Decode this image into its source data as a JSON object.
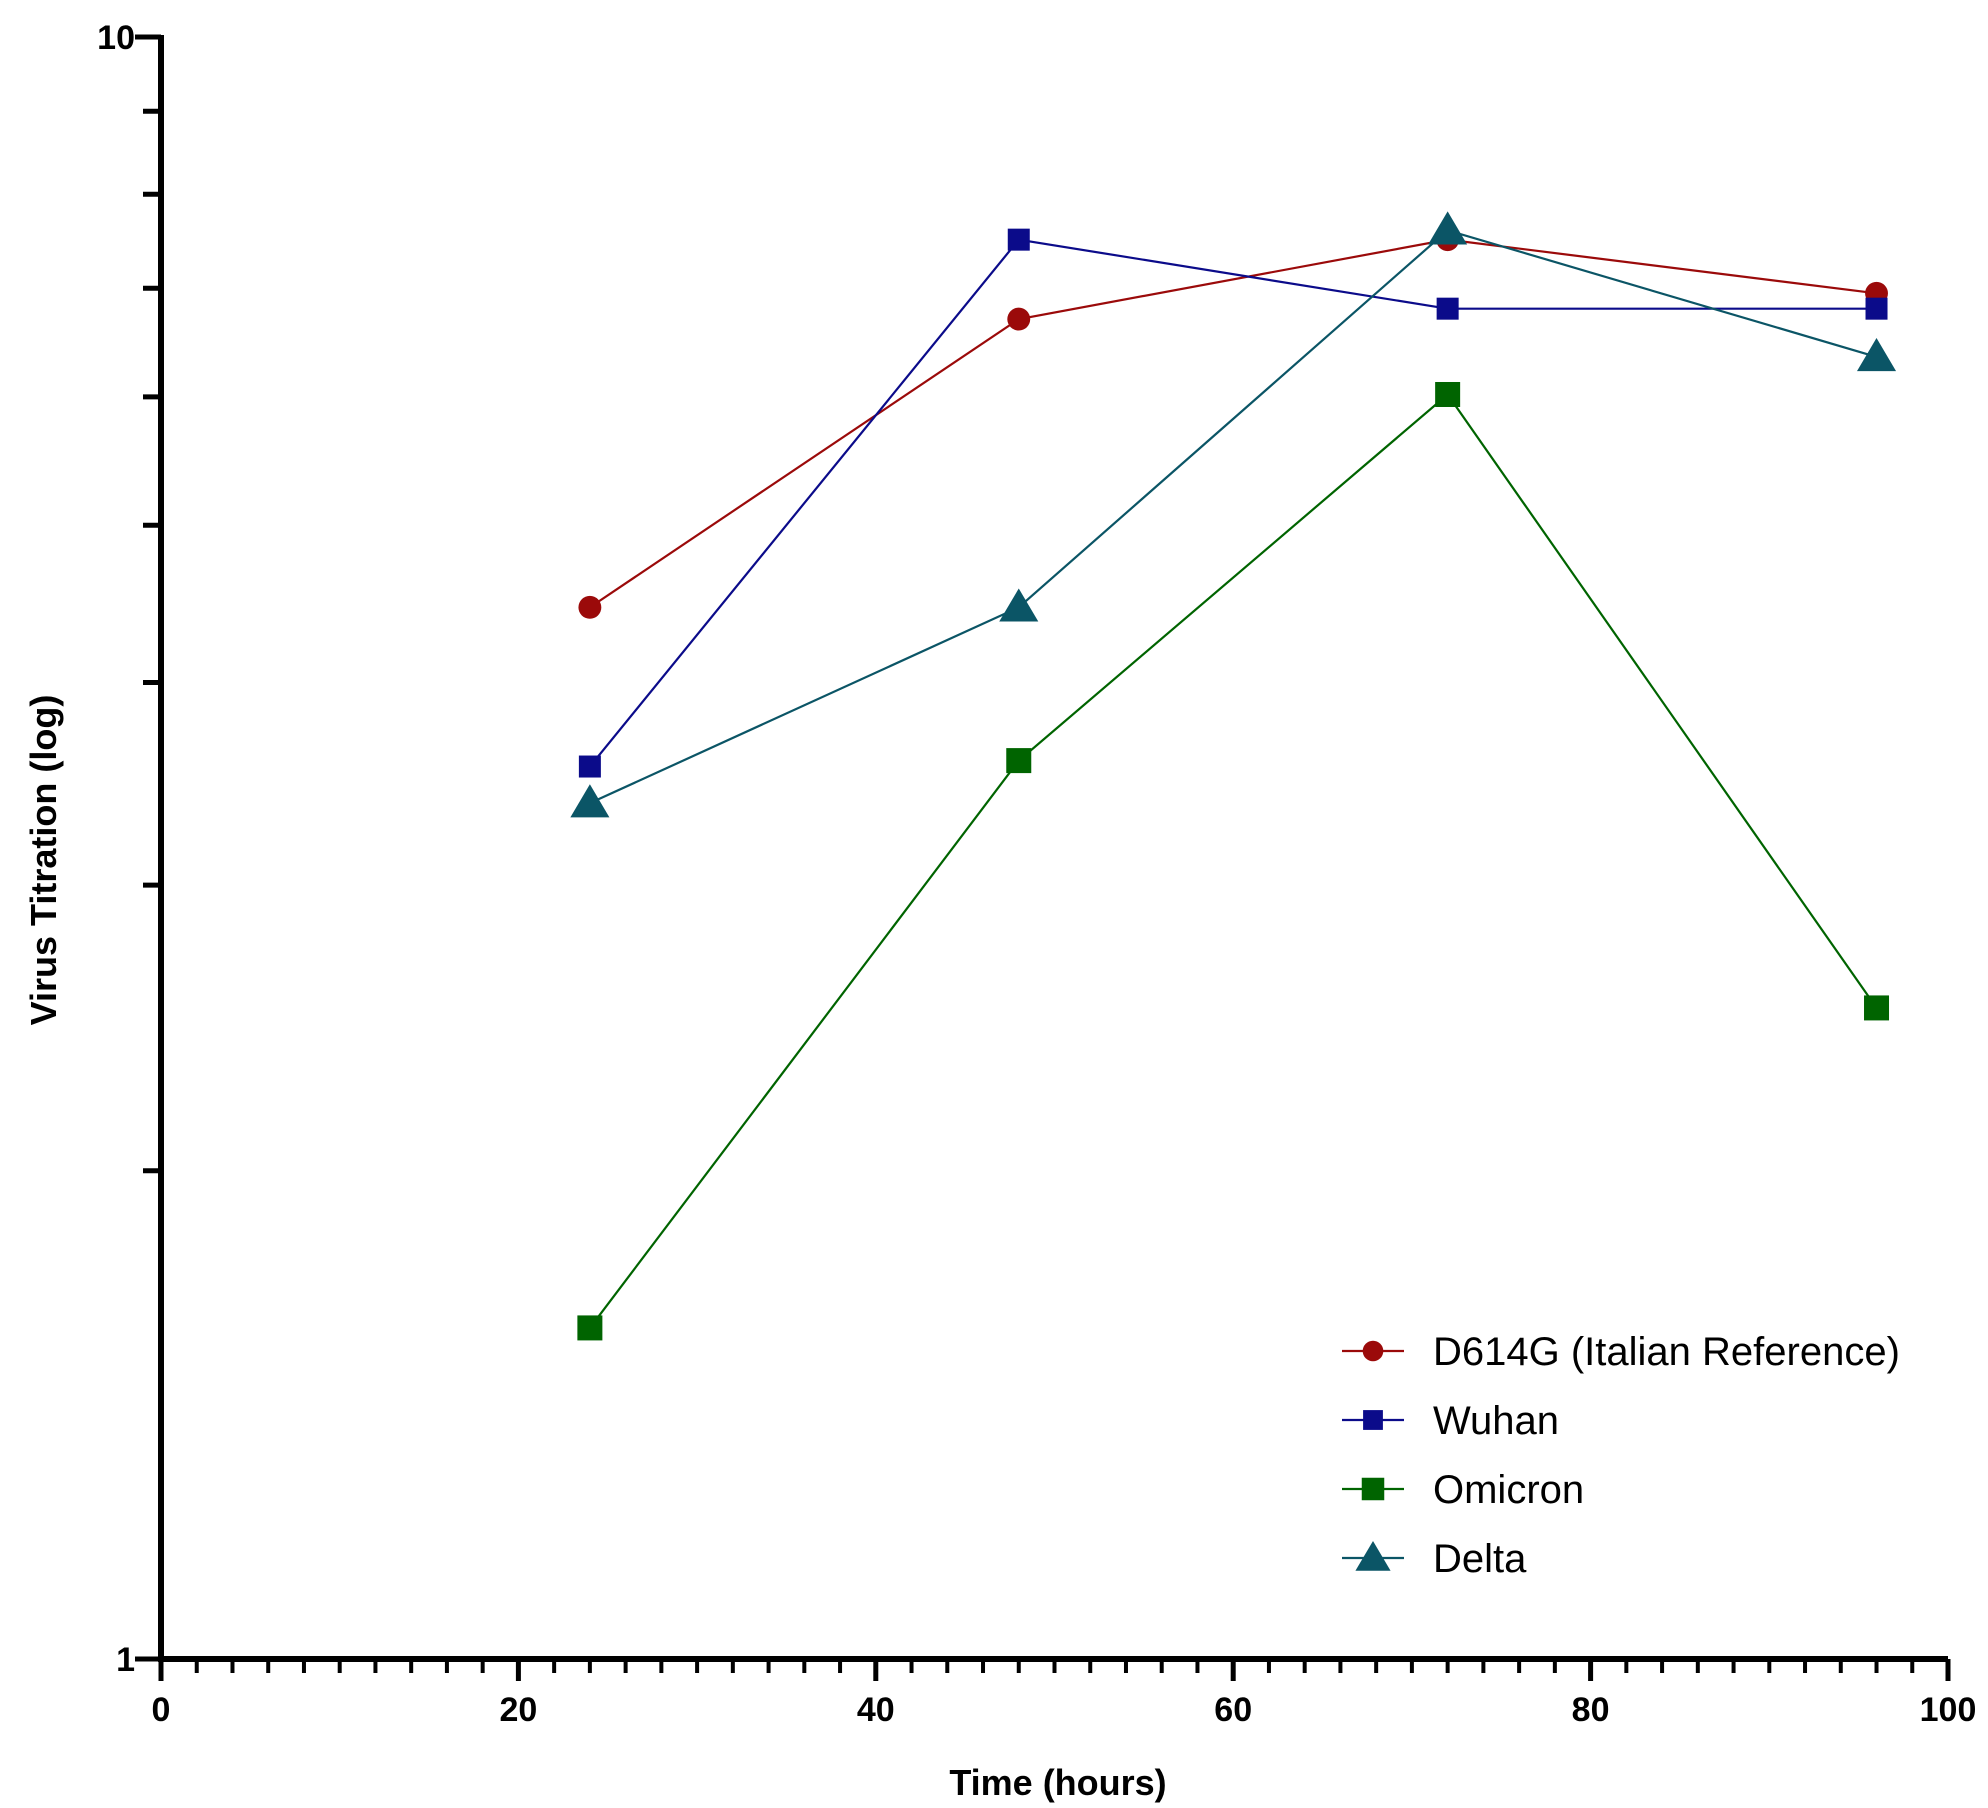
{
  "chart_data": {
    "type": "line",
    "title": "",
    "xlabel": "Time (hours)",
    "ylabel": "Virus Titration (log)",
    "y_scale": "log",
    "xlim": [
      0,
      100
    ],
    "ylim": [
      1,
      10
    ],
    "x_ticks": [
      0,
      20,
      40,
      60,
      80,
      100
    ],
    "x_tick_labels": [
      "0",
      "20",
      "40",
      "60",
      "80",
      "100"
    ],
    "x_minor_step": 2,
    "y_ticks": [
      1,
      10
    ],
    "y_tick_labels": [
      "1",
      "10"
    ],
    "y_minor_ticks": [
      2,
      3,
      4,
      5,
      6,
      7,
      8,
      9
    ],
    "grid": false,
    "legend_position": "bottom-right",
    "x": [
      24,
      48,
      72,
      96
    ],
    "series": [
      {
        "name": "D614G (Italian Reference)",
        "color": "#9b0a0a",
        "marker": "circle",
        "values": [
          4.45,
          6.7,
          7.5,
          6.95
        ]
      },
      {
        "name": "Wuhan",
        "color": "#0b0b8a",
        "marker": "square",
        "values": [
          3.55,
          7.5,
          6.8,
          6.8
        ]
      },
      {
        "name": "Omicron",
        "color": "#006400",
        "marker": "square",
        "values": [
          1.6,
          3.58,
          6.02,
          2.52
        ]
      },
      {
        "name": "Delta",
        "color": "#0b5566",
        "marker": "triangle",
        "values": [
          3.37,
          4.45,
          7.6,
          6.35
        ]
      }
    ]
  }
}
